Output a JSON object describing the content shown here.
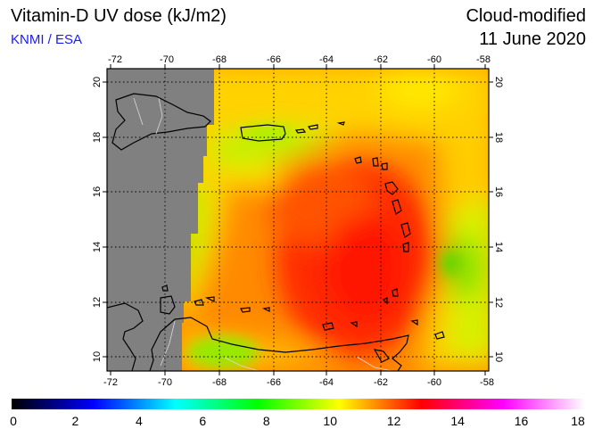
{
  "header": {
    "title": "Vitamin-D UV dose (kJ/m2)",
    "organization": "KNMI / ESA",
    "product": "Cloud-modified",
    "date": "11 June 2020"
  },
  "map": {
    "region": "Caribbean Sea",
    "lon_range": [
      -72,
      -58
    ],
    "lat_range": [
      9.5,
      20.5
    ],
    "lon_ticks": [
      "-72",
      "-70",
      "-68",
      "-66",
      "-64",
      "-62",
      "-60",
      "-58"
    ],
    "lat_ticks": [
      "10",
      "12",
      "14",
      "16",
      "18",
      "20"
    ],
    "no_data_color": "#808080",
    "grid": "dotted"
  },
  "colorbar": {
    "min": 0,
    "max": 18,
    "labels": [
      "0",
      "2",
      "4",
      "6",
      "8",
      "10",
      "12",
      "14",
      "16",
      "18"
    ],
    "stops": [
      "#000000",
      "#0000ff",
      "#00ffff",
      "#00ff00",
      "#ffff00",
      "#ff0000",
      "#ff00ff",
      "#ffffff"
    ]
  }
}
